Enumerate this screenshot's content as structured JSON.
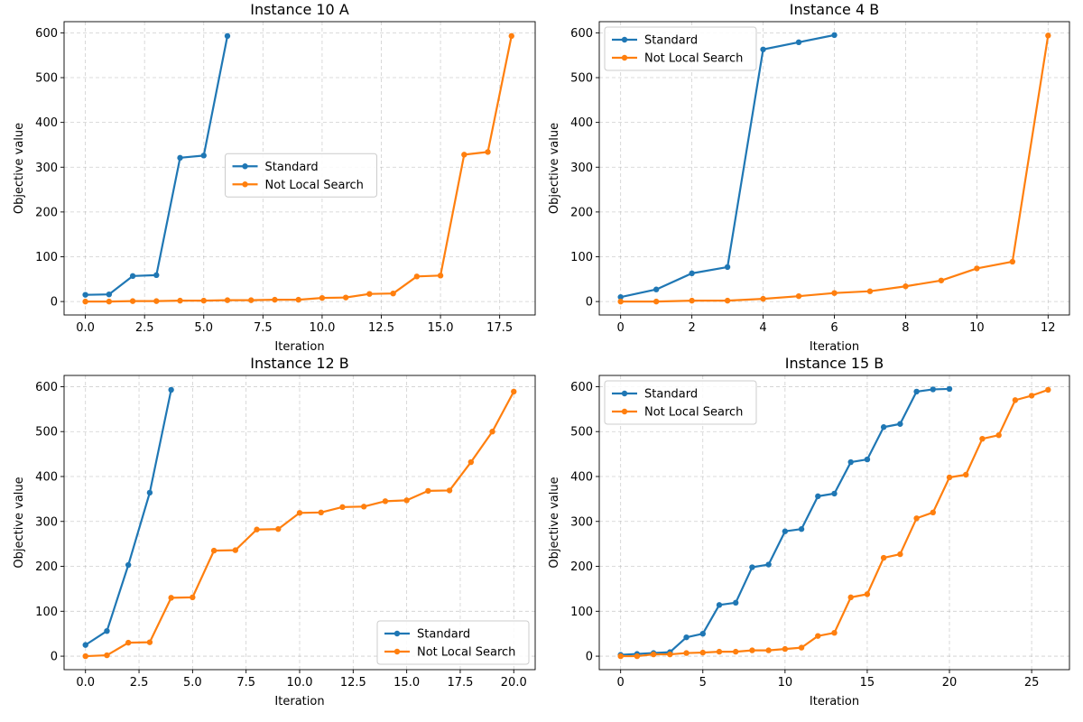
{
  "colors": {
    "standard": "#1f77b4",
    "not_local_search": "#ff7f0e"
  },
  "chart_data": [
    {
      "type": "line",
      "title": "Instance 10 A",
      "xlabel": "Iteration",
      "ylabel": "Objective value",
      "xlim": [
        -0.9,
        19.0
      ],
      "ylim": [
        -30,
        625
      ],
      "xticks": [
        0.0,
        2.5,
        5.0,
        7.5,
        10.0,
        12.5,
        15.0,
        17.5
      ],
      "xtick_labels": [
        "0.0",
        "2.5",
        "5.0",
        "7.5",
        "10.0",
        "12.5",
        "15.0",
        "17.5"
      ],
      "yticks": [
        0,
        100,
        200,
        300,
        400,
        500,
        600
      ],
      "ytick_labels": [
        "0",
        "100",
        "200",
        "300",
        "400",
        "500",
        "600"
      ],
      "grid": true,
      "legend_position": "center",
      "series": [
        {
          "name": "Standard",
          "color_key": "standard",
          "x": [
            0,
            1,
            2,
            3,
            4,
            5,
            6
          ],
          "y": [
            15,
            16,
            57,
            59,
            321,
            326,
            593
          ]
        },
        {
          "name": "Not Local Search",
          "color_key": "not_local_search",
          "x": [
            0,
            1,
            2,
            3,
            4,
            5,
            6,
            7,
            8,
            9,
            10,
            11,
            12,
            13,
            14,
            15,
            16,
            17,
            18
          ],
          "y": [
            0,
            0,
            1,
            1,
            2,
            2,
            3,
            3,
            4,
            4,
            8,
            9,
            17,
            18,
            56,
            58,
            328,
            334,
            593
          ]
        }
      ]
    },
    {
      "type": "line",
      "title": "Instance 4 B",
      "xlabel": "Iteration",
      "ylabel": "Objective value",
      "xlim": [
        -0.6,
        12.6
      ],
      "ylim": [
        -30,
        625
      ],
      "xticks": [
        0,
        2,
        4,
        6,
        8,
        10,
        12
      ],
      "xtick_labels": [
        "0",
        "2",
        "4",
        "6",
        "8",
        "10",
        "12"
      ],
      "yticks": [
        0,
        100,
        200,
        300,
        400,
        500,
        600
      ],
      "ytick_labels": [
        "0",
        "100",
        "200",
        "300",
        "400",
        "500",
        "600"
      ],
      "grid": true,
      "legend_position": "top-left",
      "series": [
        {
          "name": "Standard",
          "color_key": "standard",
          "x": [
            0,
            1,
            2,
            3,
            4,
            5,
            6
          ],
          "y": [
            10,
            27,
            63,
            77,
            563,
            579,
            595
          ]
        },
        {
          "name": "Not Local Search",
          "color_key": "not_local_search",
          "x": [
            0,
            1,
            2,
            3,
            4,
            5,
            6,
            7,
            8,
            9,
            10,
            11,
            12
          ],
          "y": [
            0,
            0,
            2,
            2,
            6,
            12,
            19,
            23,
            34,
            47,
            74,
            89,
            594
          ]
        }
      ]
    },
    {
      "type": "line",
      "title": "Instance 12 B",
      "xlabel": "Iteration",
      "ylabel": "Objective value",
      "xlim": [
        -1.0,
        21.0
      ],
      "ylim": [
        -30,
        625
      ],
      "xticks": [
        0.0,
        2.5,
        5.0,
        7.5,
        10.0,
        12.5,
        15.0,
        17.5,
        20.0
      ],
      "xtick_labels": [
        "0.0",
        "2.5",
        "5.0",
        "7.5",
        "10.0",
        "12.5",
        "15.0",
        "17.5",
        "20.0"
      ],
      "yticks": [
        0,
        100,
        200,
        300,
        400,
        500,
        600
      ],
      "ytick_labels": [
        "0",
        "100",
        "200",
        "300",
        "400",
        "500",
        "600"
      ],
      "grid": true,
      "legend_position": "bottom-right",
      "series": [
        {
          "name": "Standard",
          "color_key": "standard",
          "x": [
            0,
            1,
            2,
            3,
            4
          ],
          "y": [
            25,
            56,
            203,
            364,
            593
          ]
        },
        {
          "name": "Not Local Search",
          "color_key": "not_local_search",
          "x": [
            0,
            1,
            2,
            3,
            4,
            5,
            6,
            7,
            8,
            9,
            10,
            11,
            12,
            13,
            14,
            15,
            16,
            17,
            18,
            19,
            20
          ],
          "y": [
            0,
            2,
            30,
            31,
            130,
            131,
            235,
            236,
            282,
            283,
            319,
            320,
            332,
            333,
            345,
            347,
            368,
            369,
            432,
            500,
            589
          ]
        }
      ]
    },
    {
      "type": "line",
      "title": "Instance 15 B",
      "xlabel": "Iteration",
      "ylabel": "Objective value",
      "xlim": [
        -1.3,
        27.3
      ],
      "ylim": [
        -30,
        625
      ],
      "xticks": [
        0,
        5,
        10,
        15,
        20,
        25
      ],
      "xtick_labels": [
        "0",
        "5",
        "10",
        "15",
        "20",
        "25"
      ],
      "yticks": [
        0,
        100,
        200,
        300,
        400,
        500,
        600
      ],
      "ytick_labels": [
        "0",
        "100",
        "200",
        "300",
        "400",
        "500",
        "600"
      ],
      "grid": true,
      "legend_position": "top-left",
      "series": [
        {
          "name": "Standard",
          "color_key": "standard",
          "x": [
            0,
            1,
            2,
            3,
            4,
            5,
            6,
            7,
            8,
            9,
            10,
            11,
            12,
            13,
            14,
            15,
            16,
            17,
            18,
            19,
            20
          ],
          "y": [
            3,
            5,
            7,
            9,
            42,
            50,
            114,
            119,
            198,
            204,
            278,
            283,
            356,
            362,
            432,
            438,
            510,
            517,
            589,
            594,
            595
          ]
        },
        {
          "name": "Not Local Search",
          "color_key": "not_local_search",
          "x": [
            0,
            1,
            2,
            3,
            4,
            5,
            6,
            7,
            8,
            9,
            10,
            11,
            12,
            13,
            14,
            15,
            16,
            17,
            18,
            19,
            20,
            21,
            22,
            23,
            24,
            25,
            26
          ],
          "y": [
            0,
            0,
            4,
            4,
            7,
            8,
            10,
            10,
            13,
            13,
            16,
            19,
            45,
            52,
            131,
            138,
            219,
            227,
            307,
            320,
            398,
            404,
            484,
            492,
            570,
            580,
            593
          ]
        }
      ]
    }
  ]
}
